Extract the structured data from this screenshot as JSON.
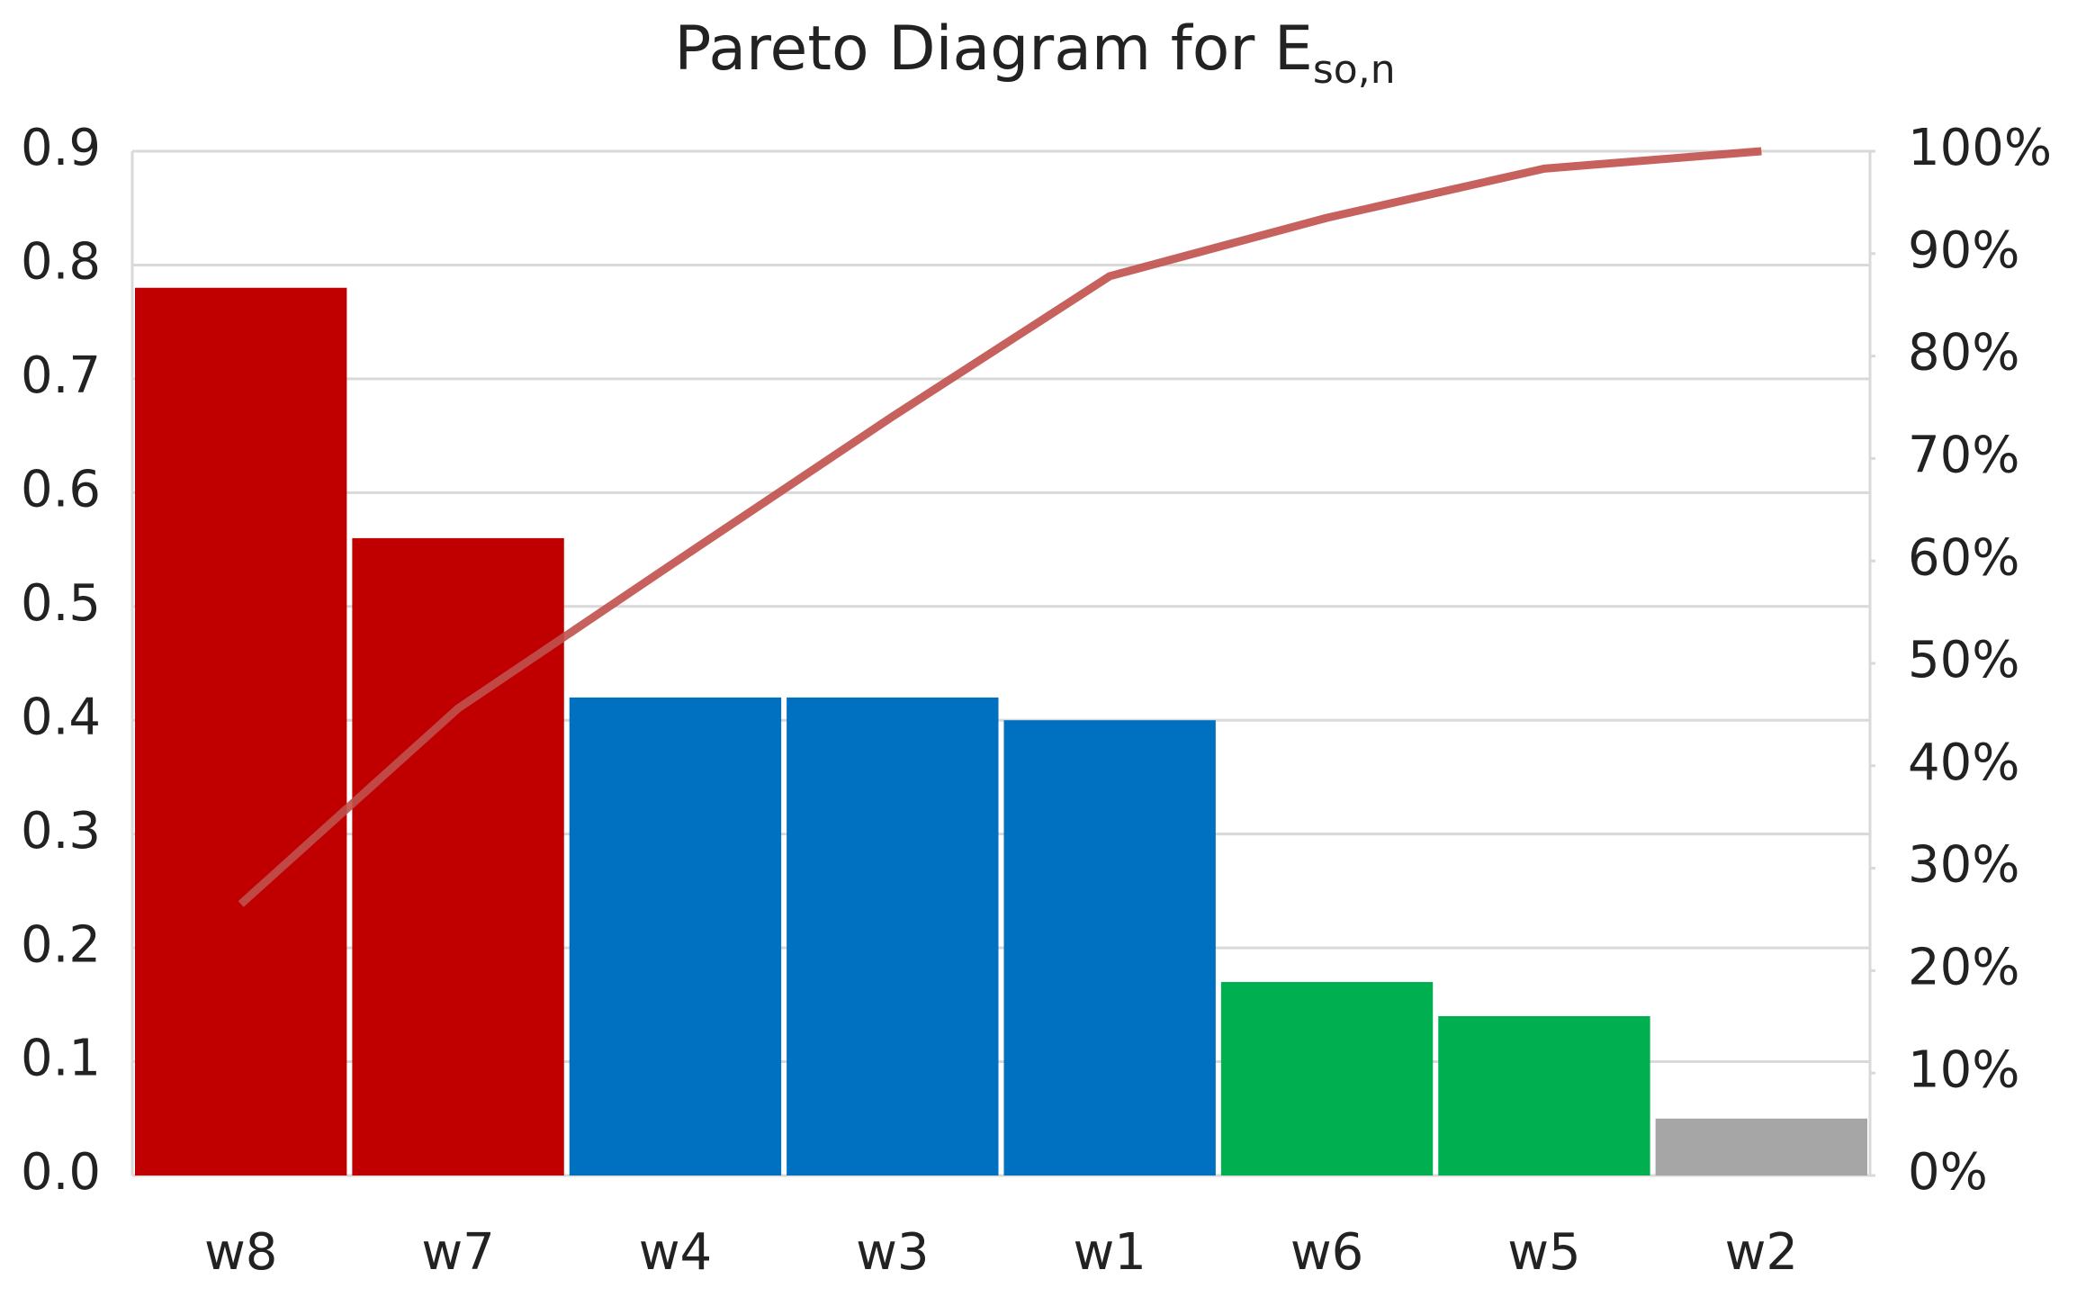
{
  "chart_data": {
    "type": "pareto",
    "title": "Pareto Diagram for E",
    "title_subscript": "so,n",
    "categories": [
      "w8",
      "w7",
      "w4",
      "w3",
      "w1",
      "w6",
      "w5",
      "w2"
    ],
    "values": [
      0.78,
      0.56,
      0.42,
      0.42,
      0.4,
      0.17,
      0.14,
      0.05
    ],
    "colors": [
      "#c00000",
      "#c00000",
      "#0070c0",
      "#0070c0",
      "#0070c0",
      "#00b050",
      "#00b050",
      "#a6a6a6"
    ],
    "cumulative": {
      "values": [
        26.5,
        45.6,
        59.9,
        74.1,
        87.8,
        93.5,
        98.3,
        100
      ],
      "color": "#c0504d",
      "axis": "y2"
    },
    "ylim": [
      0,
      0.9
    ],
    "yticks": [
      {
        "value": 0,
        "label": "0.0"
      },
      0.1,
      0.2,
      0.3,
      0.4,
      0.5,
      0.6,
      0.7,
      0.8,
      0.9
    ],
    "y2lim": [
      0,
      100
    ],
    "y2ticks": [
      {
        "value": 0,
        "label": "0%"
      },
      {
        "value": 10,
        "label": "10%"
      },
      {
        "value": 20,
        "label": "20%"
      },
      {
        "value": 30,
        "label": "30%"
      },
      {
        "value": 40,
        "label": "40%"
      },
      {
        "value": 50,
        "label": "50%"
      },
      {
        "value": 60,
        "label": "60%"
      },
      {
        "value": 70,
        "label": "70%"
      },
      {
        "value": 80,
        "label": "80%"
      },
      {
        "value": 90,
        "label": "90%"
      },
      {
        "value": 100,
        "label": "100%"
      }
    ],
    "grid": true
  }
}
